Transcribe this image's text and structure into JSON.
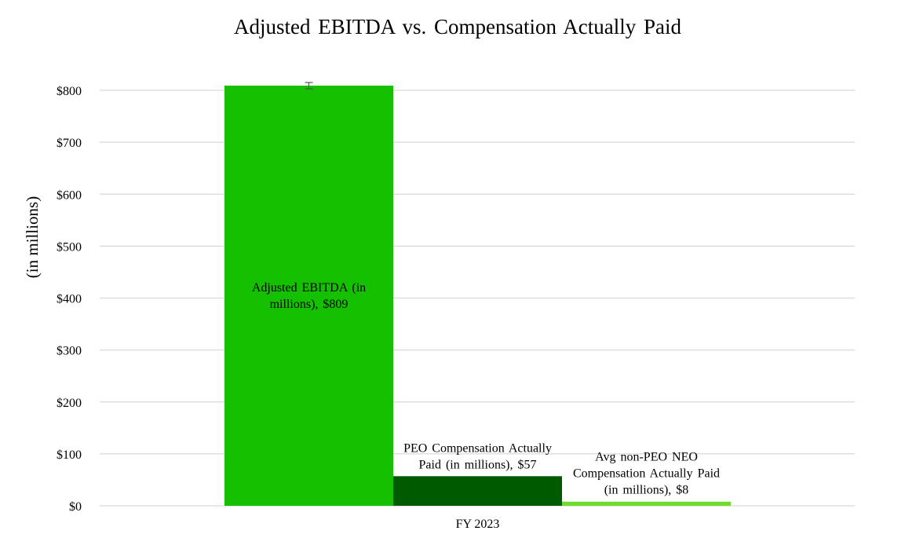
{
  "chart_data": {
    "type": "bar",
    "title": "Adjusted EBITDA vs. Compensation Actually Paid",
    "xlabel": "",
    "ylabel": "(in millions)",
    "categories": [
      "FY 2023"
    ],
    "ylim": [
      0,
      800
    ],
    "yticks": [
      0,
      100,
      200,
      300,
      400,
      500,
      600,
      700,
      800
    ],
    "ytick_labels": [
      "$0",
      "$100",
      "$200",
      "$300",
      "$400",
      "$500",
      "$600",
      "$700",
      "$800"
    ],
    "grid": true,
    "series": [
      {
        "name": "Adjusted EBITDA (in millions)",
        "values": [
          809
        ],
        "color": "#14c000",
        "label_lines": [
          "Adjusted EBITDA  (in",
          "millions),  $809"
        ],
        "label_position": "center",
        "error_bar": true
      },
      {
        "name": "PEO Compensation Actually Paid (in millions)",
        "values": [
          57
        ],
        "color": "#005a00",
        "label_lines": [
          "PEO Compensation Actually",
          "Paid (in millions),  $57"
        ],
        "label_position": "above"
      },
      {
        "name": "Avg non-PEO NEO Compensation Actually Paid (in millions)",
        "values": [
          8
        ],
        "color": "#6fdb2c",
        "label_lines": [
          "Avg non-PEO NEO",
          "Compensation Actually Paid",
          "(in millions),  $8"
        ],
        "label_position": "above"
      }
    ]
  }
}
